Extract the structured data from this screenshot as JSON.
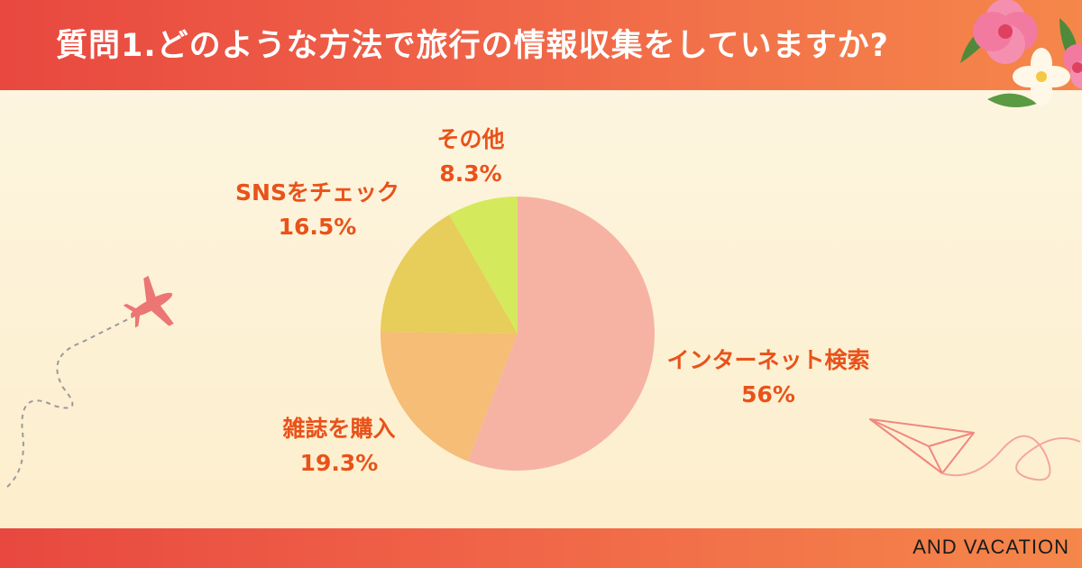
{
  "header": {
    "title": "質問1.どのような方法で旅行の情報収集をしていますか?"
  },
  "footer": {
    "brand": "AND VACATION"
  },
  "chart_data": {
    "type": "pie",
    "start": "12 o'clock",
    "direction": "clockwise",
    "categories": [
      "インターネット検索",
      "雑誌を購入",
      "SNSをチェック",
      "その他"
    ],
    "values": [
      56,
      19.3,
      16.5,
      8.3
    ],
    "labels": [
      "56%",
      "19.3%",
      "16.5%",
      "8.3%"
    ],
    "colors": [
      "#f6b3a3",
      "#f5bd76",
      "#e7cd5a",
      "#d4e95b"
    ],
    "label_color": "#e9521a"
  },
  "colors": {
    "header_start": "#e8483f",
    "header_end": "#f5874a",
    "background": "#fdf6e3",
    "accent": "#e9521a"
  }
}
